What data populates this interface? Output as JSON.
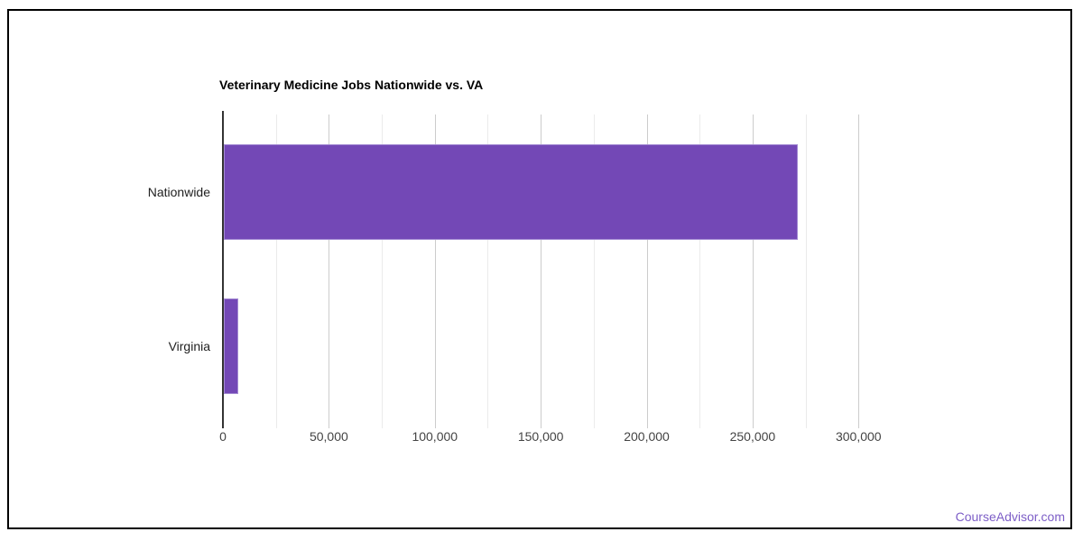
{
  "page": {
    "background": "#ffffff",
    "frame_border_color": "#000000",
    "watermark": {
      "text": "CourseAdvisor.com",
      "color": "#7d5ec7"
    }
  },
  "chart_data": {
    "type": "bar",
    "orientation": "horizontal",
    "title": "Veterinary Medicine Jobs Nationwide vs. VA",
    "categories": [
      "Nationwide",
      "Virginia"
    ],
    "values": [
      271000,
      6800
    ],
    "xlabel": "",
    "ylabel": "",
    "xlim": [
      0,
      325000
    ],
    "x_ticks": [
      0,
      50000,
      100000,
      150000,
      200000,
      250000,
      300000
    ],
    "x_tick_labels": [
      "0",
      "50,000",
      "100,000",
      "150,000",
      "200,000",
      "250,000",
      "300,000"
    ],
    "minor_tick_step": 25000,
    "grid": true,
    "legend_position": "none",
    "bar_color": "#7348b6",
    "major_grid_color": "#cccccc",
    "minor_grid_color": "#ebebeb",
    "axis_line_color": "#333333",
    "title_color": "#000000",
    "category_label_color": "#212121",
    "tick_label_color": "#444444"
  }
}
